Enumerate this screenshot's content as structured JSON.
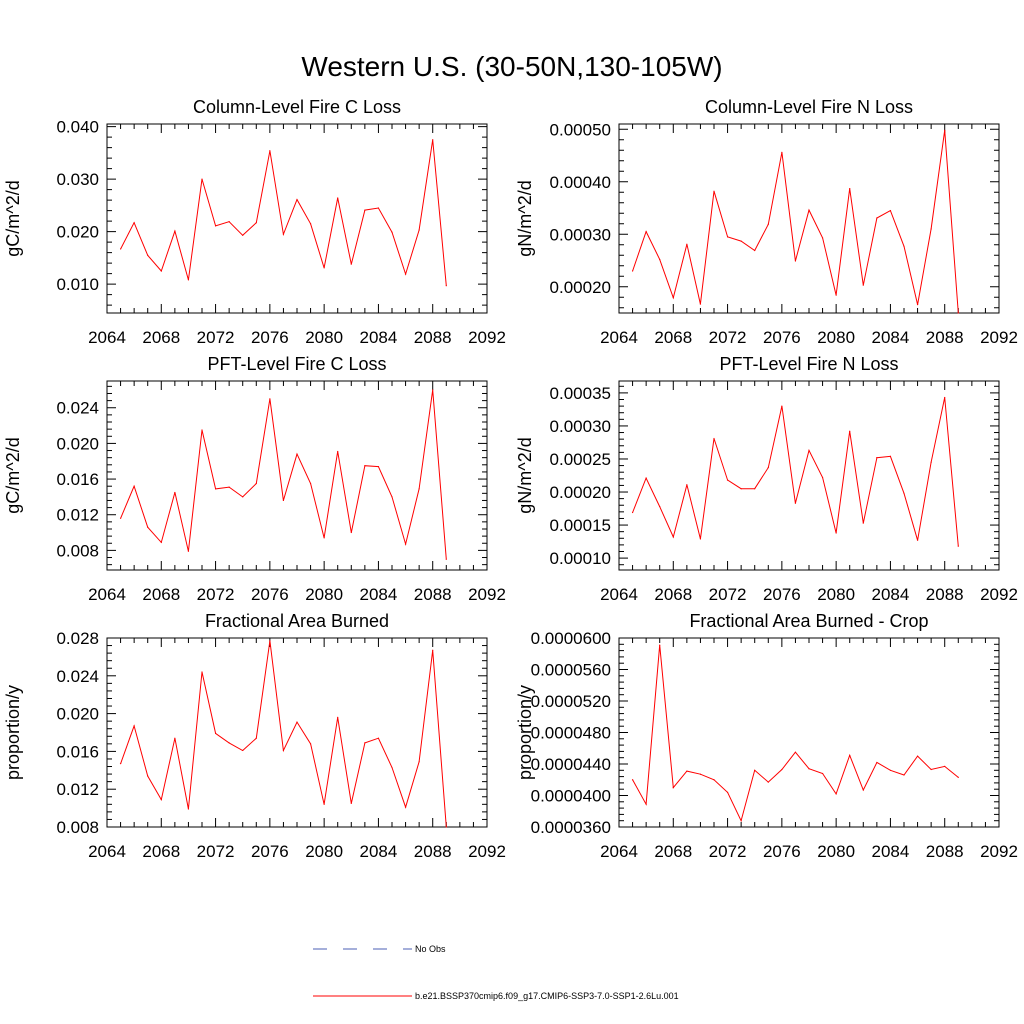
{
  "figure": {
    "title": "Western U.S. (30-50N,130-105W)"
  },
  "legend": {
    "entries": [
      {
        "label": "No Obs",
        "color": "#4b5fb5",
        "dash": "dashed"
      },
      {
        "label": "b.e21.BSSP370cmip6.f09_g17.CMIP6-SSP3-7.0-SSP1-2.6Lu.001",
        "color": "#ff0000",
        "dash": "solid"
      }
    ]
  },
  "chart_data": [
    {
      "type": "line",
      "title": "Column-Level Fire C Loss",
      "ylabel": "gC/m^2/d",
      "xlim": [
        2064,
        2092
      ],
      "ylim": [
        0.0045,
        0.0405
      ],
      "xticks": [
        2064,
        2068,
        2072,
        2076,
        2080,
        2084,
        2088,
        2092
      ],
      "xticklabels": [
        "2064",
        "2068",
        "2072",
        "2076",
        "2080",
        "2084",
        "2088",
        "2092"
      ],
      "yticks": [
        0.01,
        0.02,
        0.03,
        0.04
      ],
      "yticklabels": [
        "0.010",
        "0.020",
        "0.030",
        "0.040"
      ],
      "series": [
        {
          "color": "#ff0000",
          "x": [
            2065,
            2066,
            2067,
            2068,
            2069,
            2070,
            2071,
            2072,
            2073,
            2074,
            2075,
            2076,
            2077,
            2078,
            2079,
            2080,
            2081,
            2082,
            2083,
            2084,
            2085,
            2086,
            2087,
            2088,
            2089
          ],
          "values": [
            0.0167,
            0.0217,
            0.0155,
            0.0125,
            0.0201,
            0.0108,
            0.03,
            0.0211,
            0.0219,
            0.0193,
            0.0217,
            0.0354,
            0.0195,
            0.0261,
            0.0215,
            0.0131,
            0.0264,
            0.0138,
            0.0241,
            0.0245,
            0.0199,
            0.0119,
            0.0203,
            0.0375,
            0.0097
          ]
        }
      ]
    },
    {
      "type": "line",
      "title": "Column-Level Fire N Loss",
      "ylabel": "gN/m^2/d",
      "xlim": [
        2064,
        2092
      ],
      "ylim": [
        0.00015,
        0.00051
      ],
      "xticks": [
        2064,
        2068,
        2072,
        2076,
        2080,
        2084,
        2088,
        2092
      ],
      "xticklabels": [
        "2064",
        "2068",
        "2072",
        "2076",
        "2080",
        "2084",
        "2088",
        "2092"
      ],
      "yticks": [
        0.0002,
        0.0003,
        0.0004,
        0.0005
      ],
      "yticklabels": [
        "0.00020",
        "0.00030",
        "0.00040",
        "0.00050"
      ],
      "series": [
        {
          "color": "#ff0000",
          "x": [
            2065,
            2066,
            2067,
            2068,
            2069,
            2070,
            2071,
            2072,
            2073,
            2074,
            2075,
            2076,
            2077,
            2078,
            2079,
            2080,
            2081,
            2082,
            2083,
            2084,
            2085,
            2086,
            2087,
            2088,
            2089
          ],
          "values": [
            0.00023,
            0.000305,
            0.000252,
            0.000179,
            0.000281,
            0.000167,
            0.000382,
            0.000295,
            0.000287,
            0.000269,
            0.000319,
            0.000456,
            0.000249,
            0.000346,
            0.000293,
            0.000184,
            0.000387,
            0.000203,
            0.000331,
            0.000345,
            0.000277,
            0.000166,
            0.00031,
            0.000498,
            0.00015
          ]
        }
      ]
    },
    {
      "type": "line",
      "title": "PFT-Level Fire C Loss",
      "ylabel": "gC/m^2/d",
      "xlim": [
        2064,
        2092
      ],
      "ylim": [
        0.0058,
        0.027
      ],
      "xticks": [
        2064,
        2068,
        2072,
        2076,
        2080,
        2084,
        2088,
        2092
      ],
      "xticklabels": [
        "2064",
        "2068",
        "2072",
        "2076",
        "2080",
        "2084",
        "2088",
        "2092"
      ],
      "yticks": [
        0.008,
        0.012,
        0.016,
        0.02,
        0.024
      ],
      "yticklabels": [
        "0.008",
        "0.012",
        "0.016",
        "0.020",
        "0.024"
      ],
      "series": [
        {
          "color": "#ff0000",
          "x": [
            2065,
            2066,
            2067,
            2068,
            2069,
            2070,
            2071,
            2072,
            2073,
            2074,
            2075,
            2076,
            2077,
            2078,
            2079,
            2080,
            2081,
            2082,
            2083,
            2084,
            2085,
            2086,
            2087,
            2088,
            2089
          ],
          "values": [
            0.0116,
            0.0152,
            0.0106,
            0.0089,
            0.0145,
            0.0079,
            0.0215,
            0.0149,
            0.0151,
            0.014,
            0.0155,
            0.025,
            0.0136,
            0.0188,
            0.0155,
            0.0094,
            0.0191,
            0.01,
            0.0175,
            0.0174,
            0.014,
            0.0087,
            0.0149,
            0.026,
            0.007
          ]
        }
      ]
    },
    {
      "type": "line",
      "title": "PFT-Level Fire N Loss",
      "ylabel": "gN/m^2/d",
      "xlim": [
        2064,
        2092
      ],
      "ylim": [
        8.2e-05,
        0.000368
      ],
      "xticks": [
        2064,
        2068,
        2072,
        2076,
        2080,
        2084,
        2088,
        2092
      ],
      "xticklabels": [
        "2064",
        "2068",
        "2072",
        "2076",
        "2080",
        "2084",
        "2088",
        "2092"
      ],
      "yticks": [
        0.0001,
        0.00015,
        0.0002,
        0.00025,
        0.0003,
        0.00035
      ],
      "yticklabels": [
        "0.00010",
        "0.00015",
        "0.00020",
        "0.00025",
        "0.00030",
        "0.00035"
      ],
      "series": [
        {
          "color": "#ff0000",
          "x": [
            2065,
            2066,
            2067,
            2068,
            2069,
            2070,
            2071,
            2072,
            2073,
            2074,
            2075,
            2076,
            2077,
            2078,
            2079,
            2080,
            2081,
            2082,
            2083,
            2084,
            2085,
            2086,
            2087,
            2088,
            2089
          ],
          "values": [
            0.000169,
            0.000221,
            0.000178,
            0.000132,
            0.000211,
            0.000129,
            0.000281,
            0.000218,
            0.000205,
            0.000205,
            0.000237,
            0.00033,
            0.000183,
            0.000263,
            0.000222,
            0.000138,
            0.000292,
            0.000153,
            0.000252,
            0.000254,
            0.000198,
            0.000127,
            0.000245,
            0.000343,
            0.000118
          ]
        }
      ]
    },
    {
      "type": "line",
      "title": "Fractional Area Burned",
      "ylabel": "proportion/y",
      "xlim": [
        2064,
        2092
      ],
      "ylim": [
        0.008,
        0.028
      ],
      "xticks": [
        2064,
        2068,
        2072,
        2076,
        2080,
        2084,
        2088,
        2092
      ],
      "xticklabels": [
        "2064",
        "2068",
        "2072",
        "2076",
        "2080",
        "2084",
        "2088",
        "2092"
      ],
      "yticks": [
        0.008,
        0.012,
        0.016,
        0.02,
        0.024,
        0.028
      ],
      "yticklabels": [
        "0.008",
        "0.012",
        "0.016",
        "0.020",
        "0.024",
        "0.028"
      ],
      "series": [
        {
          "color": "#ff0000",
          "x": [
            2065,
            2066,
            2067,
            2068,
            2069,
            2070,
            2071,
            2072,
            2073,
            2074,
            2075,
            2076,
            2077,
            2078,
            2079,
            2080,
            2081,
            2082,
            2083,
            2084,
            2085,
            2086,
            2087,
            2088,
            2089
          ],
          "values": [
            0.0147,
            0.0187,
            0.0134,
            0.0109,
            0.0174,
            0.0099,
            0.0244,
            0.0179,
            0.0169,
            0.0161,
            0.0174,
            0.0277,
            0.0161,
            0.0191,
            0.0168,
            0.0104,
            0.0196,
            0.0105,
            0.0169,
            0.0174,
            0.0143,
            0.0101,
            0.0149,
            0.0267,
            0.008
          ]
        }
      ]
    },
    {
      "type": "line",
      "title": "Fractional Area Burned - Crop",
      "ylabel": "proportion/y",
      "xlim": [
        2064,
        2092
      ],
      "ylim": [
        3.6e-05,
        6e-05
      ],
      "xticks": [
        2064,
        2068,
        2072,
        2076,
        2080,
        2084,
        2088,
        2092
      ],
      "xticklabels": [
        "2064",
        "2068",
        "2072",
        "2076",
        "2080",
        "2084",
        "2088",
        "2092"
      ],
      "yticks": [
        3.6e-05,
        4e-05,
        4.4e-05,
        4.8e-05,
        5.2e-05,
        5.6e-05,
        6e-05
      ],
      "yticklabels": [
        "0.0000360",
        "0.0000400",
        "0.0000440",
        "0.0000480",
        "0.0000520",
        "0.0000560",
        "0.0000600"
      ],
      "series": [
        {
          "color": "#ff0000",
          "x": [
            2065,
            2066,
            2067,
            2068,
            2069,
            2070,
            2071,
            2072,
            2073,
            2074,
            2075,
            2076,
            2077,
            2078,
            2079,
            2080,
            2081,
            2082,
            2083,
            2084,
            2085,
            2086,
            2087,
            2088,
            2089
          ],
          "values": [
            4.2e-05,
            3.89e-05,
            5.91e-05,
            4.1e-05,
            4.31e-05,
            4.27e-05,
            4.2e-05,
            4.04e-05,
            3.68e-05,
            4.32e-05,
            4.17e-05,
            4.33e-05,
            4.55e-05,
            4.34e-05,
            4.28e-05,
            4.02e-05,
            4.51e-05,
            4.07e-05,
            4.42e-05,
            4.32e-05,
            4.26e-05,
            4.5e-05,
            4.33e-05,
            4.37e-05,
            4.23e-05
          ]
        }
      ]
    }
  ]
}
